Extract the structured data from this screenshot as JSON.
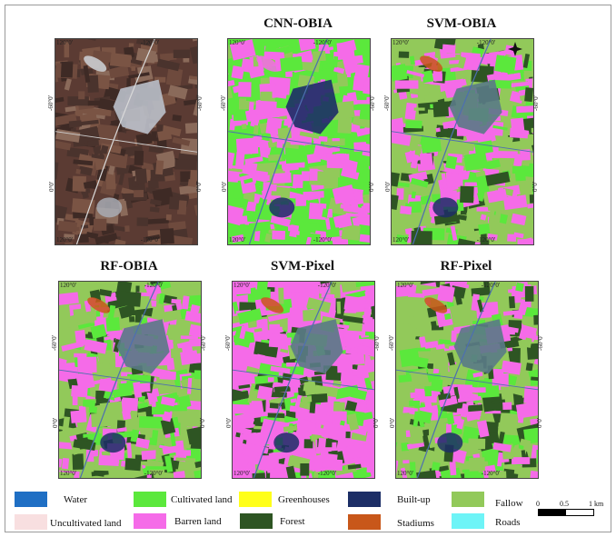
{
  "panels": [
    {
      "id": "original",
      "title": "",
      "variant": "rgb"
    },
    {
      "id": "cnn-obia",
      "title": "CNN-OBIA",
      "variant": "cnn"
    },
    {
      "id": "svm-obia",
      "title": "SVM-OBIA",
      "variant": "svm_obia"
    },
    {
      "id": "rf-obia",
      "title": "RF-OBIA",
      "variant": "rf_obia"
    },
    {
      "id": "svm-pixel",
      "title": "SVM-Pixel",
      "variant": "svm_pixel"
    },
    {
      "id": "rf-pixel",
      "title": "RF-Pixel",
      "variant": "rf_pixel"
    }
  ],
  "ticks": {
    "top_left": "120°0'",
    "top_right": "-120°0'",
    "bottom_left": "120°0'",
    "bottom_right": "-120°0'",
    "left_upper": "-60°0'",
    "left_lower": "0°0'",
    "right_upper": "-60°0'",
    "right_lower": "0°0'"
  },
  "legend": {
    "items": [
      {
        "key": "water",
        "label": "Water",
        "color": "#1f6fc4"
      },
      {
        "key": "cultivated",
        "label": "Cultivated land",
        "color": "#5be83c"
      },
      {
        "key": "greenhouses",
        "label": "Greenhouses",
        "color": "#ffff1a"
      },
      {
        "key": "builtup",
        "label": "Built-up",
        "color": "#1c2e66"
      },
      {
        "key": "fallow",
        "label": "Fallow",
        "color": "#92c95a"
      },
      {
        "key": "uncultivated",
        "label": "Uncultivated land",
        "color": "#f8dfe0"
      },
      {
        "key": "barren",
        "label": "Barren land",
        "color": "#f56be8"
      },
      {
        "key": "forest",
        "label": "Forest",
        "color": "#2e5523"
      },
      {
        "key": "stadiums",
        "label": "Stadiums",
        "color": "#c8571a"
      },
      {
        "key": "roads",
        "label": "Roads",
        "color": "#6ef4f7"
      }
    ]
  },
  "scale": {
    "labels": [
      "0",
      "0.5",
      "1 km"
    ]
  },
  "north_icon": "north-arrow-icon",
  "colors": {
    "rgb_base": "#5b3b33",
    "rgb_field_a": "#7a5444",
    "rgb_field_b": "#3e2a25",
    "rgb_urban": "#b9bfc9"
  }
}
